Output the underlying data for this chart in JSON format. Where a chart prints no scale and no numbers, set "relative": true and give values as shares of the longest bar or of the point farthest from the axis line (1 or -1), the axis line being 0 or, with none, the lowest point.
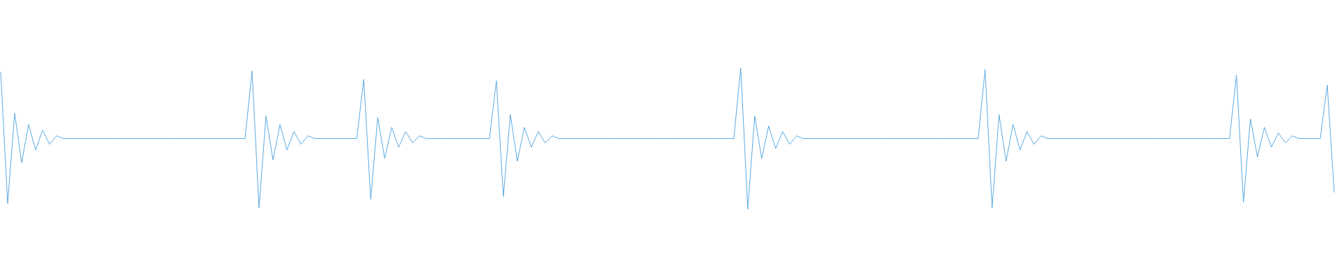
{
  "chart_data": {
    "type": "line",
    "relative": true,
    "categories": [
      null,
      null,
      null,
      null,
      null,
      null,
      null,
      null,
      null,
      null,
      null,
      null,
      null,
      null,
      null,
      null,
      null,
      null,
      null,
      null,
      null,
      null,
      null,
      null,
      null,
      null,
      null,
      null,
      null,
      null,
      null,
      null,
      null,
      null,
      null,
      null,
      null,
      null,
      null,
      null,
      null,
      null,
      null,
      null,
      null,
      null,
      null,
      null,
      null,
      null,
      null,
      null,
      null,
      null,
      null,
      null,
      null,
      null,
      null,
      null,
      null,
      null,
      null,
      null,
      null,
      null,
      null,
      null,
      null,
      null,
      null,
      null,
      null,
      null,
      null,
      null,
      null,
      null,
      null,
      null,
      null,
      null,
      null,
      null,
      null,
      null,
      null,
      null,
      null,
      null,
      null,
      null,
      null,
      null,
      null,
      null,
      null,
      null,
      null,
      null,
      null,
      null,
      null,
      null,
      null,
      null,
      null,
      null,
      null,
      null,
      null,
      null,
      null,
      null,
      null,
      null,
      null,
      null,
      null,
      null,
      null,
      null,
      null,
      null,
      null,
      null,
      null,
      null,
      null,
      null,
      null,
      null,
      null,
      null,
      null,
      null,
      null,
      null,
      null,
      null,
      null,
      null,
      null,
      null,
      null,
      null,
      null,
      null,
      null,
      null,
      null,
      null,
      null,
      null,
      null,
      null,
      null,
      null,
      null,
      null,
      null,
      null,
      null,
      null,
      null,
      null,
      null,
      null,
      null,
      null,
      null,
      null,
      null,
      null,
      null,
      null,
      null,
      null,
      null,
      null,
      null,
      null,
      null,
      null,
      null,
      null,
      null,
      null,
      null,
      null,
      null,
      null
    ],
    "series": [
      {
        "color": "#5aaae2",
        "values": [
          0.97,
          0.04,
          0.68,
          0.33,
          0.6,
          0.42,
          0.56,
          0.46,
          0.52,
          0.5,
          0.5,
          0.5,
          0.5,
          0.5,
          0.5,
          0.5,
          0.5,
          0.5,
          0.5,
          0.5,
          0.5,
          0.5,
          0.5,
          0.5,
          0.5,
          0.5,
          0.5,
          0.5,
          0.5,
          0.5,
          0.5,
          0.5,
          0.5,
          0.5,
          0.5,
          0.5,
          0.98,
          0.01,
          0.66,
          0.35,
          0.6,
          0.42,
          0.55,
          0.46,
          0.52,
          0.5,
          0.5,
          0.5,
          0.5,
          0.5,
          0.5,
          0.5,
          0.92,
          0.07,
          0.65,
          0.36,
          0.58,
          0.44,
          0.55,
          0.47,
          0.52,
          0.5,
          0.5,
          0.5,
          0.5,
          0.5,
          0.5,
          0.5,
          0.5,
          0.5,
          0.5,
          0.91,
          0.09,
          0.67,
          0.34,
          0.58,
          0.44,
          0.55,
          0.47,
          0.52,
          0.5,
          0.5,
          0.5,
          0.5,
          0.5,
          0.5,
          0.5,
          0.5,
          0.5,
          0.5,
          0.5,
          0.5,
          0.5,
          0.5,
          0.5,
          0.5,
          0.5,
          0.5,
          0.5,
          0.5,
          0.5,
          0.5,
          0.5,
          0.5,
          0.5,
          0.5,
          1,
          0,
          0.66,
          0.36,
          0.59,
          0.43,
          0.55,
          0.46,
          0.52,
          0.5,
          0.5,
          0.5,
          0.5,
          0.5,
          0.5,
          0.5,
          0.5,
          0.5,
          0.5,
          0.5,
          0.5,
          0.5,
          0.5,
          0.5,
          0.5,
          0.5,
          0.5,
          0.5,
          0.5,
          0.5,
          0.5,
          0.5,
          0.5,
          0.5,
          0.5,
          0.99,
          0.01,
          0.67,
          0.34,
          0.6,
          0.42,
          0.55,
          0.46,
          0.52,
          0.5,
          0.5,
          0.5,
          0.5,
          0.5,
          0.5,
          0.5,
          0.5,
          0.5,
          0.5,
          0.5,
          0.5,
          0.5,
          0.5,
          0.5,
          0.5,
          0.5,
          0.5,
          0.5,
          0.5,
          0.5,
          0.5,
          0.5,
          0.5,
          0.5,
          0.5,
          0.5,
          0.95,
          0.05,
          0.64,
          0.37,
          0.58,
          0.44,
          0.54,
          0.47,
          0.52,
          0.5,
          0.5,
          0.5,
          0.5,
          0.88,
          0.12
        ]
      }
    ]
  }
}
